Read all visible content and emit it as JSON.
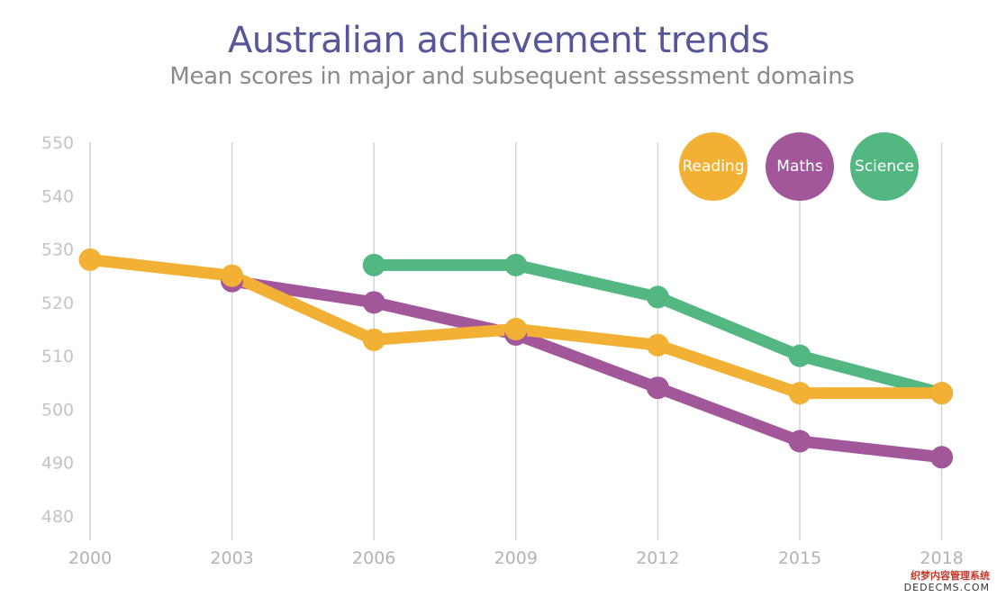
{
  "chart_data": {
    "type": "line",
    "title": "Australian achievement trends",
    "subtitle": "Mean scores in major and subsequent assessment domains",
    "x": [
      "2000",
      "2003",
      "2006",
      "2009",
      "2012",
      "2015",
      "2018"
    ],
    "ylim": [
      480,
      550
    ],
    "yticks": [
      550,
      540,
      530,
      520,
      510,
      500,
      490,
      480
    ],
    "grid": "vertical",
    "legend_position": "top-right",
    "series": [
      {
        "name": "Reading",
        "color": "#f2b134",
        "values": [
          528,
          525,
          513,
          515,
          512,
          503,
          503
        ]
      },
      {
        "name": "Maths",
        "color": "#a3579b",
        "values": [
          null,
          524,
          520,
          514,
          504,
          494,
          491
        ]
      },
      {
        "name": "Science",
        "color": "#52b781",
        "values": [
          null,
          null,
          527,
          527,
          521,
          510,
          503
        ]
      }
    ]
  },
  "watermark": {
    "line1": "织梦内容管理系统",
    "line2": "DEDECMS.COM"
  }
}
